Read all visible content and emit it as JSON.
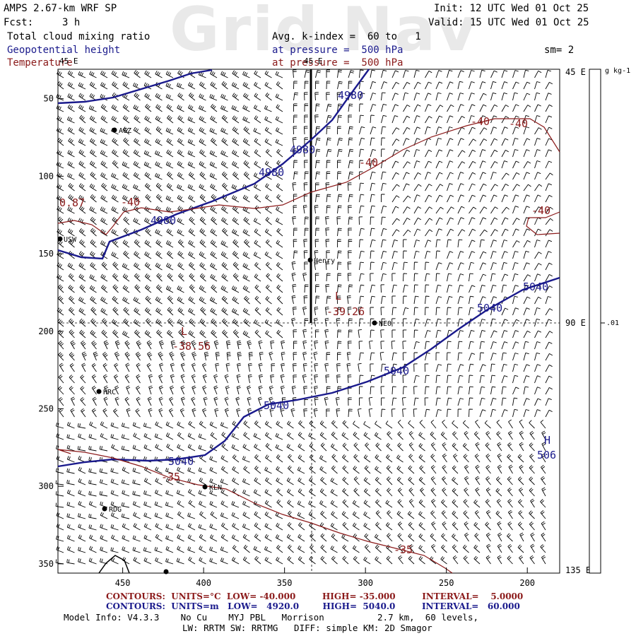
{
  "watermark": "Grid Nav",
  "header": {
    "model": "AMPS 2.67-km WRF SP",
    "init": "Init: 12 UTC Wed 01 Oct 25",
    "fcst_label": "Fcst:",
    "fcst_value": "3 h",
    "valid": "Valid: 15 UTC Wed 01 Oct 25",
    "field1": "Total cloud mixing ratio",
    "field2": "Geopotential height",
    "field3": "Temperature",
    "kindex": "Avg. k-index =  60 to   1",
    "pressure1": "at pressure =  500 hPa",
    "pressure2": "at pressure =  500 hPa",
    "smooth": "sm= 2"
  },
  "colorbar": {
    "units": "g kg-1",
    "value": ".01"
  },
  "map": {
    "x_ticks": [
      "450",
      "400",
      "350",
      "300",
      "250",
      "200"
    ],
    "y_ticks": [
      "50",
      "100",
      "150",
      "200",
      "250",
      "300",
      "350"
    ],
    "lon_labels": [
      "45 E",
      "90 E",
      "135 E"
    ],
    "top_lon_label": "45 E",
    "stations": [
      "AGZ",
      "USW",
      "Henry",
      "NEO",
      "HRC",
      "KLN",
      "RDG"
    ],
    "height_contour_labels": [
      "4980",
      "4980",
      "4980",
      "4980",
      "5040",
      "5040",
      "5040",
      "5040",
      "5040"
    ],
    "temp_contour_labels": [
      "-40",
      "-40",
      "-40",
      "-40",
      "-40",
      "-35",
      "-35"
    ],
    "corner_value": "0.87",
    "lows": [
      {
        "mark": "L",
        "value": "-39.26"
      },
      {
        "mark": "L",
        "value": "-38.56"
      }
    ],
    "high": {
      "mark": "H",
      "value": "506"
    }
  },
  "footer": {
    "contours_temp": "CONTOURS:  UNITS=°C  LOW= -40.000         HIGH= -35.000         INTERVAL=    5.0000",
    "contours_height": "CONTOURS:  UNITS=m   LOW=   4920.0        HIGH=  5040.0         INTERVAL=   60.000",
    "model_info": "Model Info: V4.3.3    No Cu    MYJ PBL   Morrison          2.7 km,  60 levels,",
    "physics": "LW: RRTM SW: RRTMG   DIFF: simple KM: 2D Smagor"
  },
  "colors": {
    "height": "#1a1a8c",
    "temperature": "#8b1a1a",
    "text": "#000000"
  }
}
